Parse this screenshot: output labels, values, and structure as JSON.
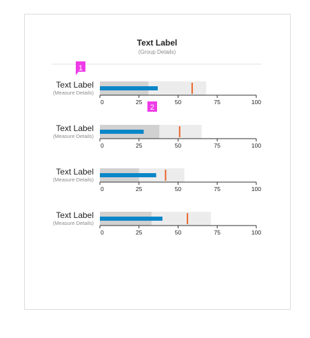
{
  "colors": {
    "range_light": "#ececec",
    "range_dark": "#d1d1d1",
    "measure": "#0a86c8",
    "target": "#e8642b",
    "axis": "#333333",
    "divider": "#e2e2e2",
    "callout": "#ee3be8"
  },
  "chart_data": {
    "type": "bullet",
    "title": "Text Label",
    "subtitle": "(Group Details)",
    "axis": {
      "min": 0,
      "max": 100,
      "ticks": [
        0,
        25,
        50,
        75,
        100
      ],
      "tick_labels": [
        "0",
        "25",
        "50",
        "75",
        "100"
      ]
    },
    "rows": [
      {
        "label": "Text Label",
        "sublabel": "(Measure Details)",
        "range_dark": 31,
        "range_light": 68,
        "measure": 37,
        "target": 59
      },
      {
        "label": "Text Label",
        "sublabel": "(Measure Details)",
        "range_dark": 38,
        "range_light": 65,
        "measure": 28,
        "target": 51
      },
      {
        "label": "Text Label",
        "sublabel": "(Measure Details)",
        "range_dark": 25,
        "range_light": 54,
        "measure": 36,
        "target": 42
      },
      {
        "label": "Text Label",
        "sublabel": "(Measure Details)",
        "range_dark": 33,
        "range_light": 71,
        "measure": 40,
        "target": 56
      }
    ]
  },
  "callouts": [
    {
      "number": "1"
    },
    {
      "number": "2"
    }
  ]
}
